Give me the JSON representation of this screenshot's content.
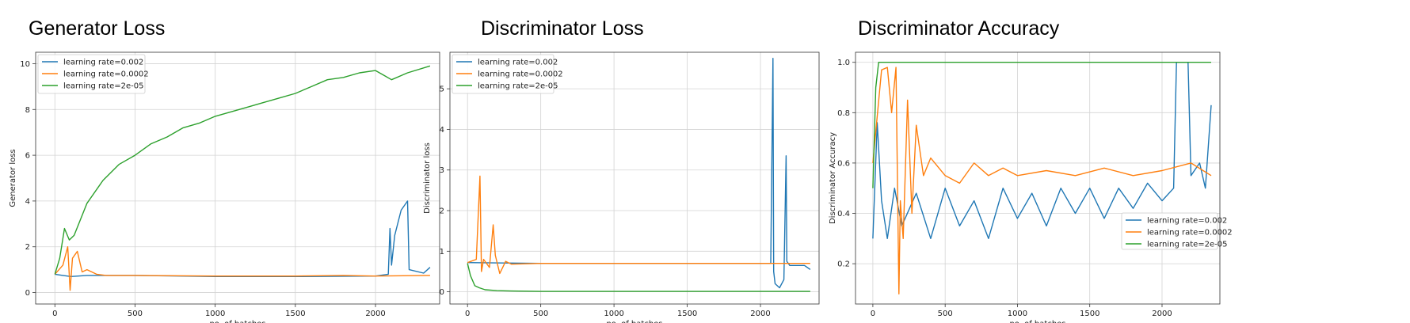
{
  "chart_data": [
    {
      "type": "line",
      "title": "Generator Loss",
      "xlabel": "no. of batches",
      "ylabel": "Generator loss",
      "xlim": [
        -120,
        2400
      ],
      "ylim": [
        -0.5,
        10.5
      ],
      "xticks": [
        0,
        500,
        1000,
        1500,
        2000
      ],
      "yticks": [
        0,
        2,
        4,
        6,
        8,
        10
      ],
      "grid": true,
      "legend": "top-left",
      "series": [
        {
          "name": "learning rate=0.002",
          "color": "#1f77b4",
          "x": [
            0,
            50,
            100,
            200,
            500,
            1000,
            1500,
            2000,
            2080,
            2090,
            2100,
            2120,
            2160,
            2200,
            2210,
            2300,
            2340
          ],
          "y": [
            0.8,
            0.75,
            0.7,
            0.75,
            0.75,
            0.7,
            0.7,
            0.72,
            0.8,
            2.8,
            1.2,
            2.5,
            3.6,
            4.0,
            1.0,
            0.85,
            1.1
          ]
        },
        {
          "name": "learning rate=0.0002",
          "color": "#ff7f0e",
          "x": [
            0,
            50,
            80,
            95,
            110,
            140,
            170,
            200,
            260,
            320,
            500,
            1000,
            1500,
            1800,
            2000,
            2340
          ],
          "y": [
            0.8,
            1.2,
            2.0,
            0.1,
            1.5,
            1.8,
            0.9,
            1.0,
            0.8,
            0.75,
            0.75,
            0.72,
            0.72,
            0.75,
            0.72,
            0.75
          ]
        },
        {
          "name": "learning rate=2e-05",
          "color": "#2ca02c",
          "x": [
            0,
            30,
            60,
            90,
            120,
            200,
            300,
            400,
            500,
            600,
            700,
            800,
            900,
            1000,
            1100,
            1200,
            1300,
            1400,
            1500,
            1600,
            1700,
            1800,
            1900,
            2000,
            2050,
            2100,
            2200,
            2340
          ],
          "y": [
            0.8,
            1.5,
            2.8,
            2.3,
            2.5,
            3.9,
            4.9,
            5.6,
            6.0,
            6.5,
            6.8,
            7.2,
            7.4,
            7.7,
            7.9,
            8.1,
            8.3,
            8.5,
            8.7,
            9.0,
            9.3,
            9.4,
            9.6,
            9.7,
            9.5,
            9.3,
            9.6,
            9.9
          ]
        }
      ]
    },
    {
      "type": "line",
      "title": "Discriminator Loss",
      "xlabel": "no. of batches",
      "ylabel": "Discriminator loss",
      "xlim": [
        -120,
        2400
      ],
      "ylim": [
        -0.3,
        5.9
      ],
      "xticks": [
        0,
        500,
        1000,
        1500,
        2000
      ],
      "yticks": [
        0,
        1,
        2,
        3,
        4,
        5
      ],
      "grid": true,
      "legend": "top-left",
      "series": [
        {
          "name": "learning rate=0.002",
          "color": "#1f77b4",
          "x": [
            0,
            500,
            1000,
            1500,
            2000,
            2070,
            2085,
            2090,
            2100,
            2130,
            2160,
            2175,
            2180,
            2200,
            2300,
            2340
          ],
          "y": [
            0.72,
            0.7,
            0.7,
            0.7,
            0.7,
            0.7,
            5.75,
            0.5,
            0.2,
            0.1,
            0.3,
            3.35,
            0.75,
            0.65,
            0.65,
            0.55
          ]
        },
        {
          "name": "learning rate=0.0002",
          "color": "#ff7f0e",
          "x": [
            0,
            60,
            85,
            95,
            110,
            150,
            175,
            190,
            220,
            260,
            300,
            500,
            1000,
            1500,
            2000,
            2340
          ],
          "y": [
            0.72,
            0.8,
            2.85,
            0.5,
            0.8,
            0.6,
            1.65,
            0.9,
            0.45,
            0.75,
            0.68,
            0.7,
            0.7,
            0.7,
            0.7,
            0.7
          ]
        },
        {
          "name": "learning rate=2e-05",
          "color": "#2ca02c",
          "x": [
            0,
            20,
            50,
            80,
            120,
            200,
            300,
            500,
            1000,
            1500,
            2000,
            2340
          ],
          "y": [
            0.7,
            0.4,
            0.15,
            0.1,
            0.05,
            0.03,
            0.02,
            0.01,
            0.01,
            0.01,
            0.01,
            0.01
          ]
        }
      ]
    },
    {
      "type": "line",
      "title": "Discriminator Accuracy",
      "xlabel": "no. of batches",
      "ylabel": "Discriminator Accuracy",
      "xlim": [
        -120,
        2400
      ],
      "ylim": [
        0.04,
        1.04
      ],
      "xticks": [
        0,
        500,
        1000,
        1500,
        2000
      ],
      "yticks": [
        0.2,
        0.4,
        0.6,
        0.8,
        1.0
      ],
      "grid": true,
      "legend": "bottom-right",
      "series": [
        {
          "name": "learning rate=0.002",
          "color": "#1f77b4",
          "x": [
            0,
            30,
            60,
            100,
            150,
            200,
            300,
            400,
            500,
            600,
            700,
            800,
            900,
            1000,
            1100,
            1200,
            1300,
            1400,
            1500,
            1600,
            1700,
            1800,
            1900,
            2000,
            2080,
            2100,
            2180,
            2200,
            2260,
            2300,
            2340
          ],
          "y": [
            0.3,
            0.76,
            0.45,
            0.3,
            0.5,
            0.35,
            0.48,
            0.3,
            0.5,
            0.35,
            0.45,
            0.3,
            0.5,
            0.38,
            0.48,
            0.35,
            0.5,
            0.4,
            0.5,
            0.38,
            0.5,
            0.42,
            0.52,
            0.45,
            0.5,
            1.0,
            1.0,
            0.55,
            0.6,
            0.5,
            0.83
          ]
        },
        {
          "name": "learning rate=0.0002",
          "color": "#ff7f0e",
          "x": [
            0,
            60,
            100,
            130,
            160,
            180,
            190,
            210,
            240,
            270,
            300,
            350,
            400,
            500,
            600,
            700,
            800,
            900,
            1000,
            1200,
            1400,
            1600,
            1800,
            2000,
            2200,
            2340
          ],
          "y": [
            0.6,
            0.97,
            0.98,
            0.8,
            0.98,
            0.08,
            0.45,
            0.3,
            0.85,
            0.4,
            0.75,
            0.55,
            0.62,
            0.55,
            0.52,
            0.6,
            0.55,
            0.58,
            0.55,
            0.57,
            0.55,
            0.58,
            0.55,
            0.57,
            0.6,
            0.55
          ]
        },
        {
          "name": "learning rate=2e-05",
          "color": "#2ca02c",
          "x": [
            0,
            20,
            40,
            60,
            100,
            500,
            1000,
            1500,
            2000,
            2340
          ],
          "y": [
            0.5,
            0.9,
            1.0,
            1.0,
            1.0,
            1.0,
            1.0,
            1.0,
            1.0,
            1.0
          ]
        }
      ]
    }
  ]
}
